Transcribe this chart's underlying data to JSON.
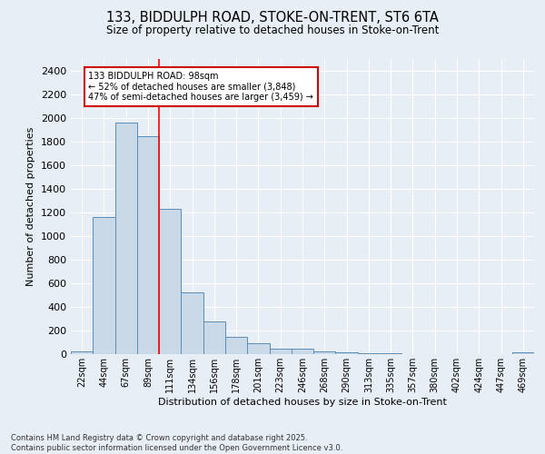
{
  "title_line1": "133, BIDDULPH ROAD, STOKE-ON-TRENT, ST6 6TA",
  "title_line2": "Size of property relative to detached houses in Stoke-on-Trent",
  "xlabel": "Distribution of detached houses by size in Stoke-on-Trent",
  "ylabel": "Number of detached properties",
  "bin_labels": [
    "22sqm",
    "44sqm",
    "67sqm",
    "89sqm",
    "111sqm",
    "134sqm",
    "156sqm",
    "178sqm",
    "201sqm",
    "223sqm",
    "246sqm",
    "268sqm",
    "290sqm",
    "313sqm",
    "335sqm",
    "357sqm",
    "380sqm",
    "402sqm",
    "424sqm",
    "447sqm",
    "469sqm"
  ],
  "bar_heights": [
    25,
    1160,
    1960,
    1850,
    1230,
    520,
    275,
    150,
    90,
    45,
    45,
    20,
    15,
    5,
    5,
    3,
    3,
    2,
    2,
    1,
    15
  ],
  "bar_color": "#c9d9e8",
  "bar_edge_color": "#5b8db8",
  "background_color": "#e8eef5",
  "grid_color": "#ffffff",
  "red_line_x": 3.5,
  "annotation_text": "133 BIDDULPH ROAD: 98sqm\n← 52% of detached houses are smaller (3,848)\n47% of semi-detached houses are larger (3,459) →",
  "annotation_box_color": "#ffffff",
  "annotation_box_edge": "#cc0000",
  "ylim": [
    0,
    2500
  ],
  "yticks": [
    0,
    200,
    400,
    600,
    800,
    1000,
    1200,
    1400,
    1600,
    1800,
    2000,
    2200,
    2400
  ],
  "footer_line1": "Contains HM Land Registry data © Crown copyright and database right 2025.",
  "footer_line2": "Contains public sector information licensed under the Open Government Licence v3.0."
}
